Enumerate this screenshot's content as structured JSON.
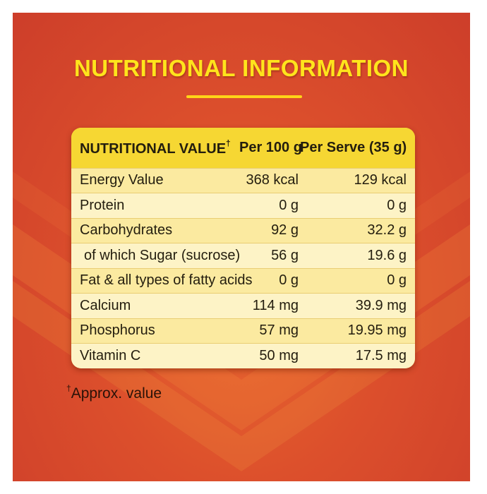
{
  "title": "NUTRITIONAL INFORMATION",
  "table": {
    "headers": {
      "nutrient": "NUTRITIONAL VALUE",
      "nutrient_mark": "†",
      "per_100g": "Per 100 g",
      "per_serve": "Per Serve (35 g)"
    },
    "rows": [
      {
        "name": "Energy Value",
        "per_100g": "368 kcal",
        "per_serve": "129 kcal"
      },
      {
        "name": "Protein",
        "per_100g": "0 g",
        "per_serve": "0 g"
      },
      {
        "name": "Carbohydrates",
        "per_100g": "92 g",
        "per_serve": "32.2 g"
      },
      {
        "name": "of which Sugar (sucrose)",
        "per_100g": "56 g",
        "per_serve": "19.6 g"
      },
      {
        "name": "Fat & all types of fatty acids",
        "per_100g": "0 g",
        "per_serve": "0 g"
      },
      {
        "name": "Calcium",
        "per_100g": "114 mg",
        "per_serve": "39.9 mg"
      },
      {
        "name": "Phosphorus",
        "per_100g": "57 mg",
        "per_serve": "19.95 mg"
      },
      {
        "name": "Vitamin C",
        "per_100g": "50 mg",
        "per_serve": "17.5 mg"
      }
    ]
  },
  "footnote": {
    "mark": "†",
    "text": "Approx. value"
  },
  "colors": {
    "background": "#dc4f2c",
    "title": "#ffe41c",
    "table_header": "#f6d733",
    "row_light": "#fdf3c6",
    "row_dark": "#fbeaa0"
  }
}
